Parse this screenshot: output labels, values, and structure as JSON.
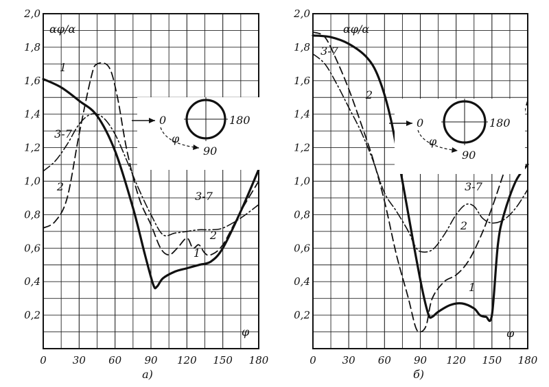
{
  "chart_data": [
    {
      "type": "line",
      "caption": "а)",
      "ylabel": "αφ/α",
      "xlabel": "φ",
      "xlim": [
        0,
        180
      ],
      "ylim": [
        0,
        2.0
      ],
      "x_ticks": [
        "0",
        "30",
        "60",
        "90",
        "120",
        "150",
        "180"
      ],
      "y_ticks": [
        "0,2",
        "0,4",
        "0,6",
        "0,8",
        "1,0",
        "1,2",
        "1,4",
        "1,6",
        "1,8",
        "2,0"
      ],
      "grid": true,
      "series": [
        {
          "name": "1",
          "style": "solid-thick",
          "points": [
            [
              0,
              1.61
            ],
            [
              15,
              1.56
            ],
            [
              30,
              1.48
            ],
            [
              45,
              1.39
            ],
            [
              60,
              1.18
            ],
            [
              75,
              0.84
            ],
            [
              85,
              0.56
            ],
            [
              92,
              0.38
            ],
            [
              95,
              0.37
            ],
            [
              100,
              0.42
            ],
            [
              110,
              0.46
            ],
            [
              120,
              0.48
            ],
            [
              130,
              0.5
            ],
            [
              140,
              0.52
            ],
            [
              150,
              0.6
            ],
            [
              165,
              0.82
            ],
            [
              180,
              1.07
            ]
          ]
        },
        {
          "name": "2",
          "style": "dashed",
          "points": [
            [
              0,
              0.72
            ],
            [
              10,
              0.76
            ],
            [
              20,
              0.9
            ],
            [
              30,
              1.28
            ],
            [
              40,
              1.62
            ],
            [
              45,
              1.7
            ],
            [
              55,
              1.68
            ],
            [
              62,
              1.5
            ],
            [
              70,
              1.18
            ],
            [
              80,
              0.9
            ],
            [
              90,
              0.74
            ],
            [
              98,
              0.6
            ],
            [
              105,
              0.56
            ],
            [
              112,
              0.6
            ],
            [
              120,
              0.66
            ],
            [
              125,
              0.6
            ],
            [
              130,
              0.62
            ],
            [
              135,
              0.57
            ],
            [
              140,
              0.56
            ],
            [
              150,
              0.62
            ],
            [
              165,
              0.82
            ],
            [
              180,
              1.0
            ]
          ]
        },
        {
          "name": "3-7",
          "style": "dash-dot",
          "points": [
            [
              0,
              1.06
            ],
            [
              10,
              1.12
            ],
            [
              20,
              1.22
            ],
            [
              30,
              1.34
            ],
            [
              40,
              1.4
            ],
            [
              50,
              1.38
            ],
            [
              60,
              1.28
            ],
            [
              70,
              1.12
            ],
            [
              80,
              0.95
            ],
            [
              90,
              0.8
            ],
            [
              100,
              0.68
            ],
            [
              110,
              0.69
            ],
            [
              120,
              0.7
            ],
            [
              130,
              0.71
            ],
            [
              140,
              0.71
            ],
            [
              150,
              0.72
            ],
            [
              165,
              0.78
            ],
            [
              180,
              0.86
            ]
          ]
        }
      ],
      "inset": {
        "labels": [
          "0",
          "φ",
          "90",
          "180"
        ]
      }
    },
    {
      "type": "line",
      "caption": "б)",
      "ylabel": "αφ/α",
      "xlabel": "φ",
      "xlim": [
        0,
        180
      ],
      "ylim": [
        0,
        2.0
      ],
      "x_ticks": [
        "0",
        "30",
        "60",
        "90",
        "120",
        "150",
        "180"
      ],
      "y_ticks": [
        "0,2",
        "0,4",
        "0,6",
        "0,8",
        "1,0",
        "1,2",
        "1,4",
        "1,6",
        "1,8",
        "2,0"
      ],
      "grid": true,
      "series": [
        {
          "name": "1",
          "style": "solid-thick",
          "points": [
            [
              0,
              1.87
            ],
            [
              15,
              1.86
            ],
            [
              30,
              1.82
            ],
            [
              45,
              1.74
            ],
            [
              55,
              1.62
            ],
            [
              65,
              1.38
            ],
            [
              75,
              1.0
            ],
            [
              85,
              0.6
            ],
            [
              92,
              0.34
            ],
            [
              97,
              0.2
            ],
            [
              100,
              0.19
            ],
            [
              105,
              0.22
            ],
            [
              115,
              0.26
            ],
            [
              125,
              0.27
            ],
            [
              135,
              0.24
            ],
            [
              140,
              0.2
            ],
            [
              145,
              0.19
            ],
            [
              150,
              0.2
            ],
            [
              155,
              0.62
            ],
            [
              160,
              0.8
            ],
            [
              170,
              1.0
            ],
            [
              180,
              1.1
            ]
          ]
        },
        {
          "name": "2",
          "style": "dashed",
          "points": [
            [
              0,
              1.89
            ],
            [
              10,
              1.86
            ],
            [
              20,
              1.72
            ],
            [
              30,
              1.55
            ],
            [
              40,
              1.35
            ],
            [
              50,
              1.14
            ],
            [
              60,
              0.88
            ],
            [
              70,
              0.56
            ],
            [
              80,
              0.3
            ],
            [
              86,
              0.13
            ],
            [
              90,
              0.1
            ],
            [
              95,
              0.14
            ],
            [
              100,
              0.3
            ],
            [
              110,
              0.4
            ],
            [
              120,
              0.44
            ],
            [
              130,
              0.52
            ],
            [
              140,
              0.66
            ],
            [
              150,
              0.84
            ],
            [
              160,
              1.05
            ],
            [
              170,
              1.25
            ],
            [
              180,
              1.48
            ]
          ]
        },
        {
          "name": "3-7",
          "style": "dash-dot",
          "points": [
            [
              0,
              1.76
            ],
            [
              10,
              1.7
            ],
            [
              20,
              1.58
            ],
            [
              30,
              1.44
            ],
            [
              40,
              1.3
            ],
            [
              50,
              1.13
            ],
            [
              60,
              0.93
            ],
            [
              70,
              0.82
            ],
            [
              80,
              0.7
            ],
            [
              85,
              0.62
            ],
            [
              90,
              0.58
            ],
            [
              100,
              0.59
            ],
            [
              110,
              0.68
            ],
            [
              120,
              0.8
            ],
            [
              128,
              0.86
            ],
            [
              135,
              0.85
            ],
            [
              142,
              0.78
            ],
            [
              150,
              0.75
            ],
            [
              160,
              0.77
            ],
            [
              170,
              0.84
            ],
            [
              180,
              0.95
            ]
          ]
        }
      ],
      "inset": {
        "labels": [
          "0",
          "φ",
          "90",
          "180"
        ]
      }
    }
  ]
}
